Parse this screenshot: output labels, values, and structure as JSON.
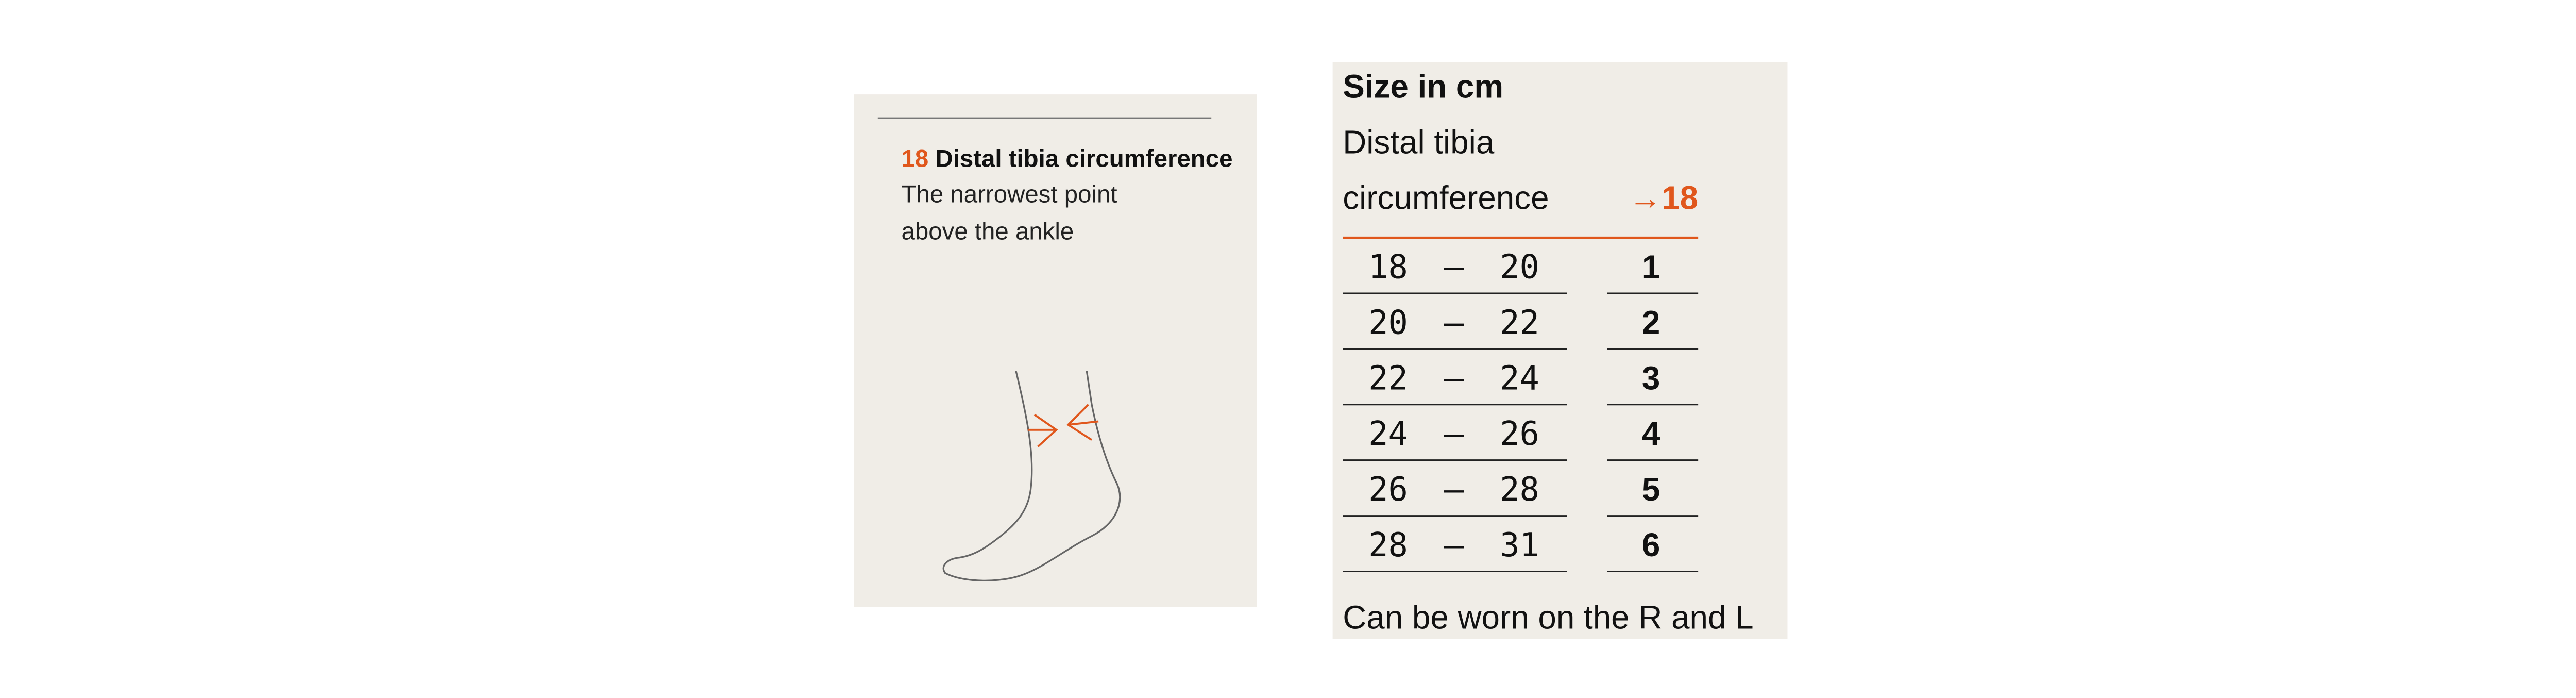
{
  "measure": {
    "number": "18",
    "title": "Distal tibia circumference",
    "description": [
      "The narrowest point",
      "above the ankle"
    ]
  },
  "table": {
    "title": "Size in cm",
    "header": [
      "Distal tibia",
      "circumference"
    ],
    "header_ref": "→18",
    "rows": [
      [
        "18",
        "–",
        "20",
        "1"
      ],
      [
        "20",
        "–",
        "22",
        "2"
      ],
      [
        "22",
        "–",
        "24",
        "3"
      ],
      [
        "24",
        "–",
        "26",
        "4"
      ],
      [
        "26",
        "–",
        "28",
        "5"
      ],
      [
        "28",
        "–",
        "31",
        "6"
      ]
    ],
    "note": "Can be worn on the R and L"
  }
}
